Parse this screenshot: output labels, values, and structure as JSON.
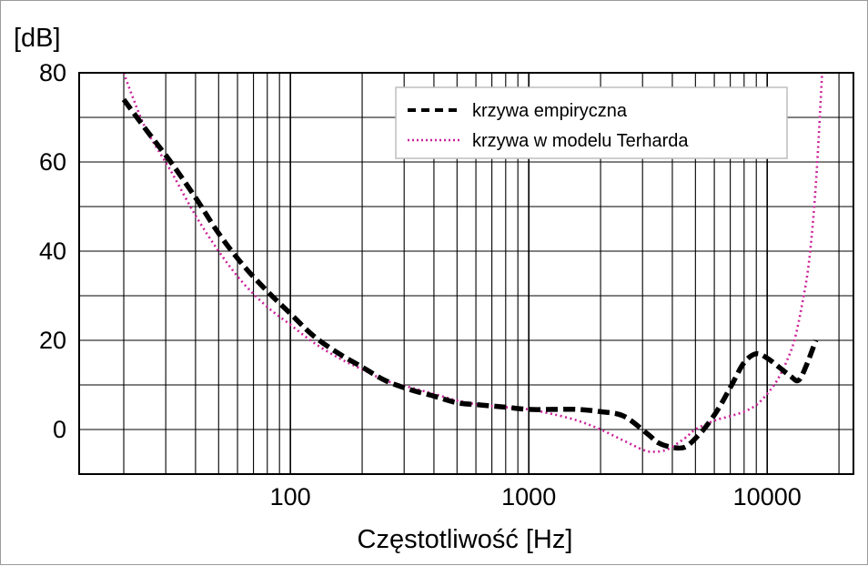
{
  "chart_data": {
    "type": "line",
    "title": "",
    "xlabel": "Częstotliwość [Hz]",
    "ylabel": "[dB]",
    "xscale": "log",
    "xlim": [
      13,
      23000
    ],
    "ylim": [
      -10,
      80
    ],
    "x_ticks": [
      100,
      1000,
      10000
    ],
    "x_tick_labels": [
      "100",
      "1000",
      "10000"
    ],
    "y_ticks": [
      0,
      20,
      40,
      60,
      80
    ],
    "y_tick_labels": [
      "0",
      "20",
      "40",
      "60",
      "80"
    ],
    "grid": true,
    "legend_position": "top-right",
    "series": [
      {
        "name": "krzywa empiryczna",
        "style": "dashed",
        "color": "#000000",
        "x": [
          20,
          25,
          31.5,
          40,
          50,
          63,
          80,
          100,
          125,
          160,
          200,
          250,
          315,
          400,
          500,
          630,
          800,
          1000,
          1250,
          1600,
          2000,
          2500,
          3150,
          3500,
          4000,
          4500,
          5000,
          5600,
          6300,
          7100,
          8000,
          9000,
          10000,
          11200,
          12500,
          13500,
          14500,
          16000
        ],
        "y": [
          74,
          67,
          60,
          52,
          44,
          37,
          31,
          26,
          21,
          17,
          14,
          11,
          9,
          7.5,
          6,
          5.5,
          5,
          4.5,
          4.5,
          4.5,
          4,
          3,
          -1,
          -3,
          -4,
          -4,
          -2,
          1,
          5,
          10,
          15,
          17,
          16,
          14,
          12,
          11,
          14,
          20
        ]
      },
      {
        "name": "krzywa w modelu Terharda",
        "style": "dotted",
        "color": "#cc2299",
        "x": [
          20,
          22,
          25,
          31.5,
          40,
          50,
          63,
          80,
          100,
          125,
          160,
          200,
          250,
          315,
          400,
          500,
          630,
          800,
          1000,
          1250,
          1600,
          2000,
          2500,
          3000,
          3300,
          3800,
          4500,
          5000,
          6000,
          7000,
          8000,
          9000,
          10000,
          11000,
          12000,
          13000,
          14000,
          15000,
          16000,
          17000
        ],
        "y": [
          80,
          74,
          67,
          58,
          48,
          40,
          33,
          27.5,
          23.5,
          19.5,
          16,
          13.5,
          11,
          9.5,
          8,
          6.5,
          5.5,
          5,
          4.5,
          3.5,
          2,
          0,
          -2.5,
          -4.5,
          -5,
          -4.5,
          -2,
          0,
          2,
          3,
          4,
          5.5,
          8,
          11,
          15,
          20,
          28,
          38,
          55,
          80
        ]
      }
    ]
  }
}
